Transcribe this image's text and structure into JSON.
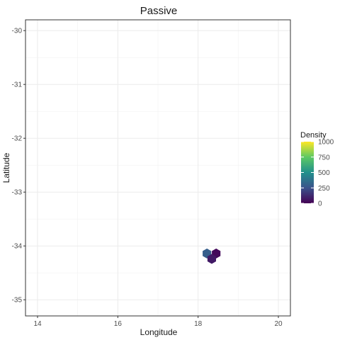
{
  "chart_data": {
    "type": "heatmap",
    "subtype": "hexbin",
    "title": "Passive",
    "xlabel": "Longitude",
    "ylabel": "Latitude",
    "xlim": [
      13.7,
      20.3
    ],
    "ylim": [
      -35.3,
      -29.8
    ],
    "x_ticks": [
      14,
      16,
      18,
      20
    ],
    "y_ticks": [
      -30,
      -31,
      -32,
      -33,
      -34,
      -35
    ],
    "x_tick_labels": [
      "14",
      "16",
      "18",
      "20"
    ],
    "y_tick_labels": [
      "-30",
      "-31",
      "-32",
      "-33",
      "-34",
      "-35"
    ],
    "grid": true,
    "legend": {
      "title": "Density",
      "position": "right",
      "range": [
        0,
        1000
      ],
      "ticks": [
        1000,
        750,
        500,
        250,
        0
      ],
      "tick_labels": [
        "1000",
        "750",
        "500",
        "250",
        "0"
      ]
    },
    "colors": [
      "#440154",
      "#3b528b",
      "#21908c",
      "#5dc963",
      "#fde725"
    ],
    "hexbins": [
      {
        "x": 18.22,
        "y": -34.14,
        "density": 300
      },
      {
        "x": 18.45,
        "y": -34.14,
        "density": 25
      },
      {
        "x": 18.34,
        "y": -34.24,
        "density": 75
      }
    ]
  }
}
